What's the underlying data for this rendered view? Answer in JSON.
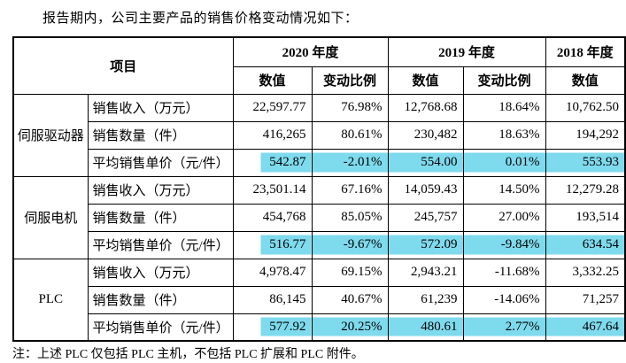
{
  "intro": "报告期内，公司主要产品的销售价格变动情况如下：",
  "note": "注：上述 PLC 仅包括 PLC 主机，不包括 PLC 扩展和 PLC 附件。",
  "highlight_color": "#7edaed",
  "table": {
    "header": {
      "item_label": "项目",
      "year_groups": [
        {
          "label": "2020 年度",
          "cols": [
            "数值",
            "变动比例"
          ]
        },
        {
          "label": "2019 年度",
          "cols": [
            "数值",
            "变动比例"
          ]
        },
        {
          "label": "2018 年度",
          "cols": [
            "数值"
          ]
        }
      ]
    },
    "groups": [
      {
        "name": "伺服驱动器",
        "rows": [
          {
            "item": "销售收入（万元）",
            "values": [
              "22,597.77",
              "76.98%",
              "12,768.68",
              "18.64%",
              "10,762.50"
            ],
            "highlight": false
          },
          {
            "item": "销售数量（件）",
            "values": [
              "416,265",
              "80.61%",
              "230,482",
              "18.63%",
              "194,292"
            ],
            "highlight": false
          },
          {
            "item": "平均销售单价（元/件）",
            "values": [
              "542.87",
              "-2.01%",
              "554.00",
              "0.01%",
              "553.93"
            ],
            "highlight": true
          }
        ]
      },
      {
        "name": "伺服电机",
        "rows": [
          {
            "item": "销售收入（万元）",
            "values": [
              "23,501.14",
              "67.16%",
              "14,059.43",
              "14.50%",
              "12,279.28"
            ],
            "highlight": false
          },
          {
            "item": "销售数量（件）",
            "values": [
              "454,768",
              "85.05%",
              "245,757",
              "27.00%",
              "193,514"
            ],
            "highlight": false
          },
          {
            "item": "平均销售单价（元/件）",
            "values": [
              "516.77",
              "-9.67%",
              "572.09",
              "-9.84%",
              "634.54"
            ],
            "highlight": true
          }
        ]
      },
      {
        "name": "PLC",
        "rows": [
          {
            "item": "销售收入（万元）",
            "values": [
              "4,978.47",
              "69.15%",
              "2,943.21",
              "-11.68%",
              "3,332.25"
            ],
            "highlight": false
          },
          {
            "item": "销售数量（件）",
            "values": [
              "86,145",
              "40.67%",
              "61,239",
              "-14.06%",
              "71,257"
            ],
            "highlight": false
          },
          {
            "item": "平均销售单价（元/件）",
            "values": [
              "577.92",
              "20.25%",
              "480.61",
              "2.77%",
              "467.64"
            ],
            "highlight": true
          }
        ]
      }
    ]
  }
}
